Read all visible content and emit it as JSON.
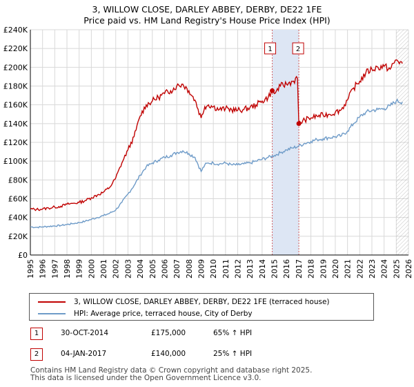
{
  "title_line1": "3, WILLOW CLOSE, DARLEY ABBEY, DERBY, DE22 1FE",
  "title_line2": "Price paid vs. HM Land Registry's House Price Index (HPI)",
  "colors": {
    "property": "#c00000",
    "hpi": "#6e9bc8",
    "shade": "#dde6f4",
    "grid": "#d8d8d8",
    "hatch": "#999999"
  },
  "chart_data": {
    "type": "line",
    "title": "Price paid vs. HM Land Registry's House Price Index (HPI)",
    "x_range": [
      1995,
      2026
    ],
    "ylim": [
      0,
      240000
    ],
    "y_ticks": [
      {
        "value": 0,
        "label": "£0"
      },
      {
        "value": 20000,
        "label": "£20K"
      },
      {
        "value": 40000,
        "label": "£40K"
      },
      {
        "value": 60000,
        "label": "£60K"
      },
      {
        "value": 80000,
        "label": "£80K"
      },
      {
        "value": 100000,
        "label": "£100K"
      },
      {
        "value": 120000,
        "label": "£120K"
      },
      {
        "value": 140000,
        "label": "£140K"
      },
      {
        "value": 160000,
        "label": "£160K"
      },
      {
        "value": 180000,
        "label": "£180K"
      },
      {
        "value": 200000,
        "label": "£200K"
      },
      {
        "value": 220000,
        "label": "£220K"
      },
      {
        "value": 240000,
        "label": "£240K"
      }
    ],
    "x_ticks": [
      "1995",
      "1996",
      "1997",
      "1998",
      "1999",
      "2000",
      "2001",
      "2002",
      "2003",
      "2004",
      "2005",
      "2006",
      "2007",
      "2008",
      "2009",
      "2010",
      "2011",
      "2012",
      "2013",
      "2014",
      "2015",
      "2016",
      "2017",
      "2018",
      "2019",
      "2020",
      "2021",
      "2022",
      "2023",
      "2024",
      "2025",
      "2026"
    ],
    "shaded_period": [
      2014.83,
      2017.01
    ],
    "hatched_from": 2025.0,
    "series": [
      {
        "name": "3, WILLOW CLOSE, DARLEY ABBEY, DERBY, DE22 1FE (terraced house)",
        "x": [
          1995.0,
          1995.5,
          1996.0,
          1996.5,
          1997.0,
          1997.5,
          1998.0,
          1998.5,
          1999.0,
          1999.5,
          2000.0,
          2000.5,
          2001.0,
          2001.5,
          2002.0,
          2002.5,
          2003.0,
          2003.5,
          2004.0,
          2004.5,
          2005.0,
          2005.5,
          2006.0,
          2006.5,
          2007.0,
          2007.5,
          2008.0,
          2008.5,
          2009.0,
          2009.3,
          2009.6,
          2010.0,
          2010.5,
          2011.0,
          2011.5,
          2012.0,
          2012.5,
          2013.0,
          2013.5,
          2014.0,
          2014.5,
          2014.83,
          2015.0,
          2015.5,
          2016.0,
          2016.5,
          2016.9,
          2017.01,
          2017.5,
          2018.0,
          2018.5,
          2019.0,
          2019.5,
          2020.0,
          2020.5,
          2021.0,
          2021.5,
          2022.0,
          2022.5,
          2023.0,
          2023.5,
          2024.0,
          2024.5,
          2025.0,
          2025.5
        ],
        "values": [
          49000,
          48500,
          49000,
          50000,
          51000,
          52000,
          54000,
          55000,
          56000,
          58000,
          61000,
          64000,
          67000,
          72000,
          82000,
          98000,
          112000,
          126000,
          148000,
          160000,
          164000,
          168000,
          172000,
          175000,
          180000,
          182000,
          175000,
          165000,
          146000,
          158000,
          160000,
          158000,
          155000,
          156000,
          155000,
          154000,
          155000,
          157000,
          160000,
          164000,
          168000,
          175000,
          172000,
          180000,
          182000,
          185000,
          188000,
          140000,
          144000,
          146000,
          148000,
          149000,
          150000,
          152000,
          155000,
          165000,
          178000,
          185000,
          194000,
          198000,
          200000,
          201000,
          198000,
          208000,
          204000
        ]
      },
      {
        "name": "HPI: Average price, terraced house, City of Derby",
        "x": [
          1995.0,
          1995.5,
          1996.0,
          1996.5,
          1997.0,
          1997.5,
          1998.0,
          1998.5,
          1999.0,
          1999.5,
          2000.0,
          2000.5,
          2001.0,
          2001.5,
          2002.0,
          2002.5,
          2003.0,
          2003.5,
          2004.0,
          2004.5,
          2005.0,
          2005.5,
          2006.0,
          2006.5,
          2007.0,
          2007.5,
          2008.0,
          2008.5,
          2009.0,
          2009.3,
          2009.6,
          2010.0,
          2010.5,
          2011.0,
          2011.5,
          2012.0,
          2012.5,
          2013.0,
          2013.5,
          2014.0,
          2014.5,
          2015.0,
          2015.5,
          2016.0,
          2016.5,
          2017.0,
          2017.5,
          2018.0,
          2018.5,
          2019.0,
          2019.5,
          2020.0,
          2020.5,
          2021.0,
          2021.5,
          2022.0,
          2022.5,
          2023.0,
          2023.5,
          2024.0,
          2024.5,
          2025.0,
          2025.5
        ],
        "values": [
          30000,
          29500,
          30000,
          30500,
          31000,
          31500,
          32500,
          33500,
          34500,
          36000,
          38000,
          40000,
          42000,
          44500,
          48000,
          56000,
          65000,
          74000,
          85000,
          94000,
          98000,
          101000,
          104000,
          106000,
          109000,
          111000,
          108000,
          104000,
          89000,
          96000,
          98000,
          98000,
          97000,
          98000,
          96000,
          96000,
          97000,
          98000,
          100000,
          102000,
          104000,
          106000,
          109000,
          112000,
          114000,
          116000,
          119000,
          121000,
          123000,
          124000,
          125000,
          126000,
          127000,
          132000,
          140000,
          147000,
          152000,
          154000,
          155000,
          156000,
          159000,
          164000,
          163000
        ]
      }
    ],
    "sales": [
      {
        "label": "1",
        "x": 2014.83,
        "value": 175000,
        "date": "30-OCT-2014",
        "price": "£175,000",
        "hpi": "65% ↑ HPI"
      },
      {
        "label": "2",
        "x": 2017.01,
        "value": 140000,
        "date": "04-JAN-2017",
        "price": "£140,000",
        "hpi": "25% ↑ HPI"
      }
    ]
  },
  "legend": {
    "property": "3, WILLOW CLOSE, DARLEY ABBEY, DERBY, DE22 1FE (terraced house)",
    "hpi": "HPI: Average price, terraced house, City of Derby"
  },
  "footer_line1": "Contains HM Land Registry data © Crown copyright and database right 2025.",
  "footer_line2": "This data is licensed under the Open Government Licence v3.0."
}
